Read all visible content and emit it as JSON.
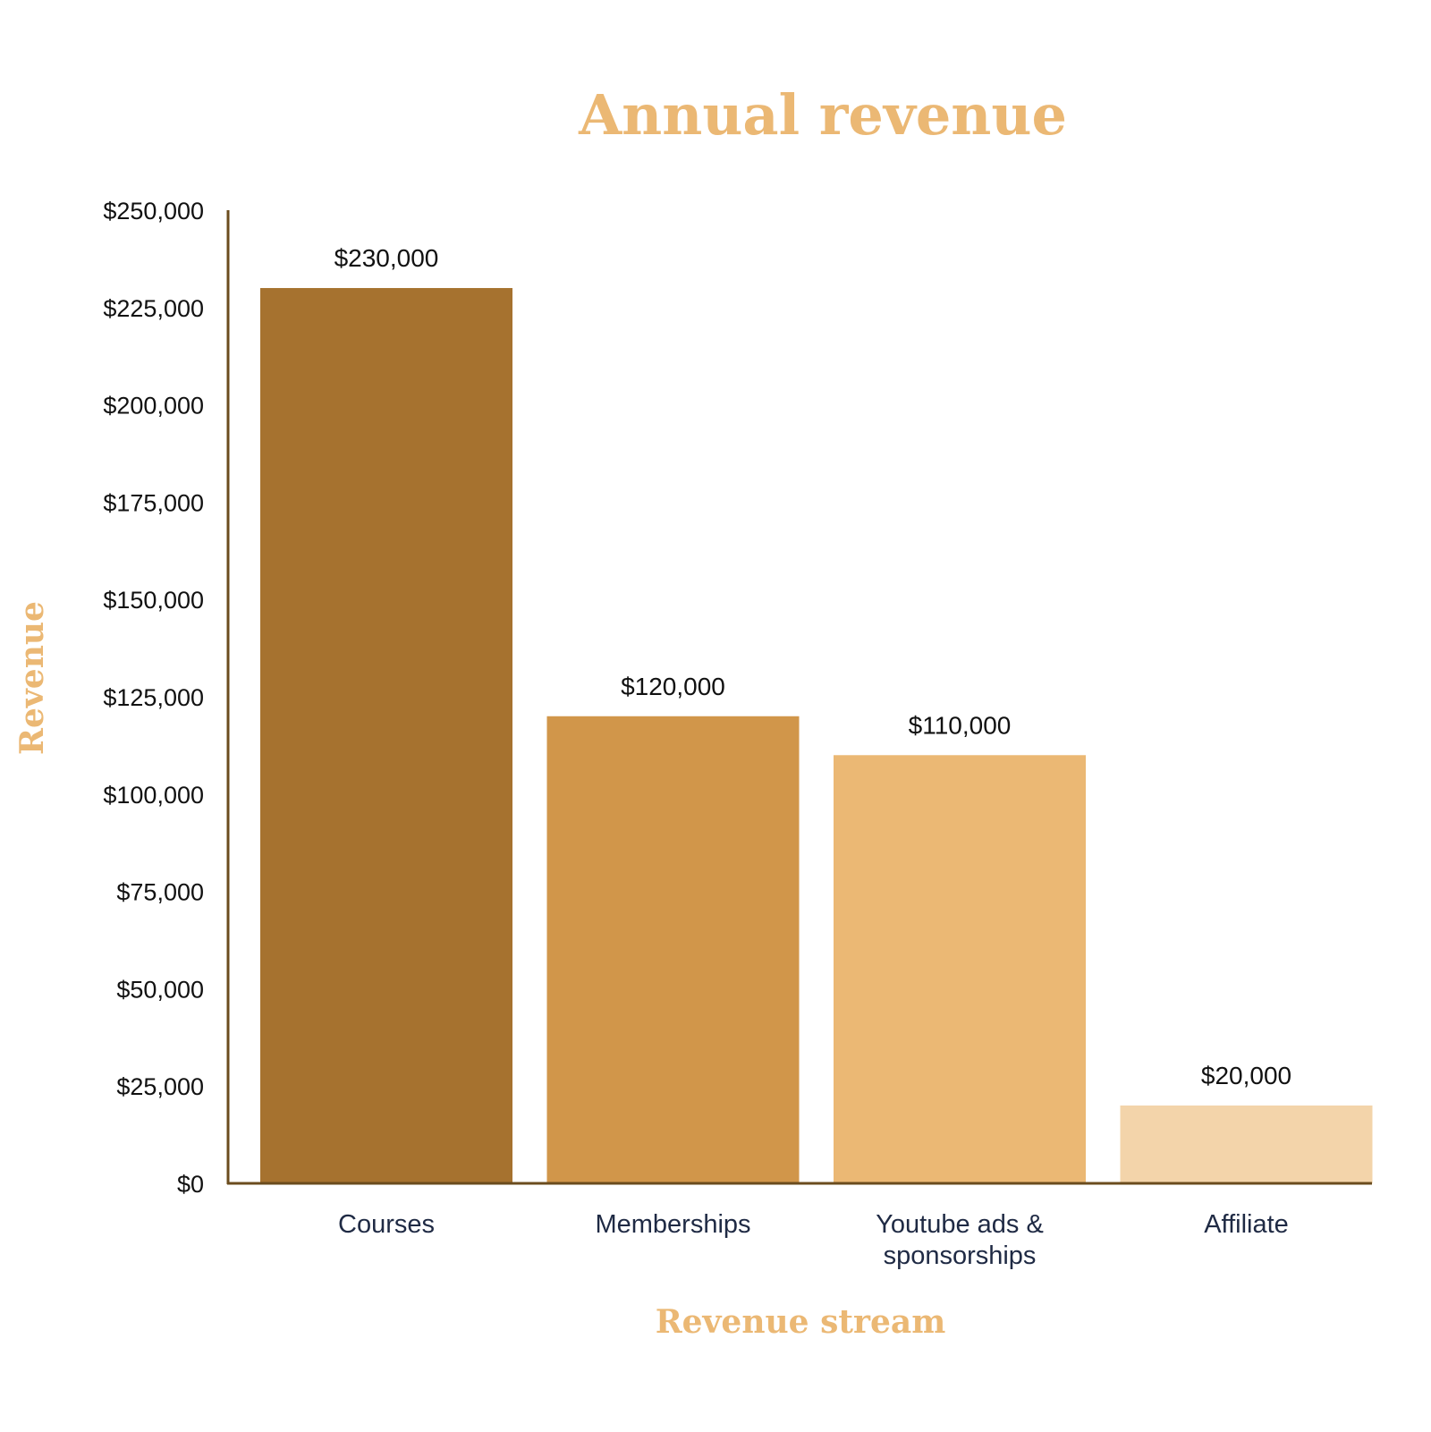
{
  "chart_data": {
    "type": "bar",
    "title": "Annual revenue",
    "xlabel": "Revenue stream",
    "ylabel": "Revenue",
    "categories": [
      [
        "Courses"
      ],
      [
        "Memberships"
      ],
      [
        "Youtube ads &",
        "sponsorships"
      ],
      [
        "Affiliate"
      ]
    ],
    "values": [
      230000,
      120000,
      110000,
      20000
    ],
    "value_labels": [
      "$230,000",
      "$120,000",
      "$110,000",
      "$20,000"
    ],
    "ylim": [
      0,
      250000
    ],
    "yticks": [
      0,
      25000,
      50000,
      75000,
      100000,
      125000,
      150000,
      175000,
      200000,
      225000,
      250000
    ],
    "ytick_labels": [
      "$0",
      "$25,000",
      "$50,000",
      "$75,000",
      "$100,000",
      "$125,000",
      "$150,000",
      "$175,000",
      "$200,000",
      "$225,000",
      "$250,000"
    ],
    "grid": false,
    "legend": "none",
    "colors": {
      "bars": [
        "#a6722f",
        "#d1964a",
        "#ebb874",
        "#f3d4aa"
      ],
      "title": "#ebb874",
      "axis": "#6b4c1e"
    }
  }
}
